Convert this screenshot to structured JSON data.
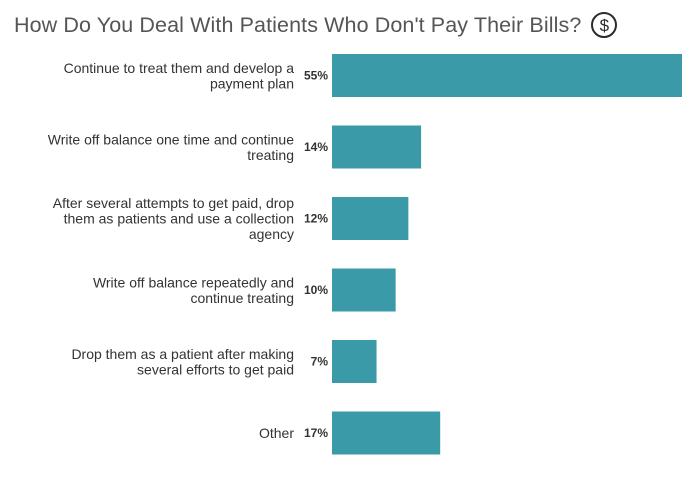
{
  "header": {
    "title": "How Do You Deal With Patients Who Don't Pay Their Bills?",
    "icon": "dollar-circle-icon",
    "icon_glyph": "$"
  },
  "chart_data": {
    "type": "bar",
    "orientation": "horizontal",
    "title": "How Do You Deal With Patients Who Don't Pay Their Bills?",
    "categories": [
      [
        "Continue to treat them and develop a",
        "payment plan"
      ],
      [
        "Write off balance one time and continue",
        "treating"
      ],
      [
        "After several attempts to get paid, drop",
        "them as patients and use a collection",
        "agency"
      ],
      [
        "Write off balance repeatedly and",
        "continue treating"
      ],
      [
        "Drop them as a patient after making",
        "several efforts to get paid"
      ],
      [
        "Other"
      ]
    ],
    "values": [
      55,
      14,
      12,
      10,
      7,
      17
    ],
    "value_labels": [
      "55%",
      "14%",
      "12%",
      "10%",
      "7%",
      "17%"
    ],
    "unit": "%",
    "xlim": [
      0,
      55
    ],
    "bar_color": "#3a9aa8",
    "grid": false,
    "legend": "none"
  }
}
